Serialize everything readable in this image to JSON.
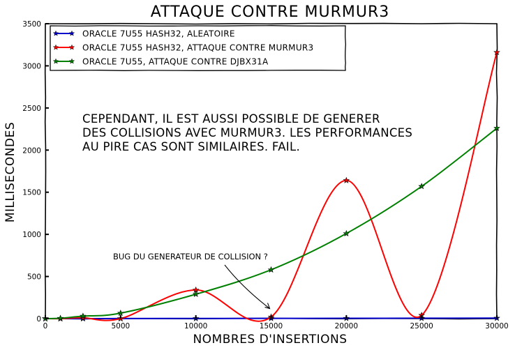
{
  "chart_data": {
    "type": "line",
    "title": "Attaque contre Murmur3",
    "xlabel": "Nombres d'insertions",
    "ylabel": "Millisecondes",
    "xlim": [
      0,
      30000
    ],
    "ylim": [
      0,
      3500
    ],
    "x_ticks": [
      0,
      5000,
      10000,
      15000,
      20000,
      25000,
      30000
    ],
    "y_ticks": [
      0,
      500,
      1000,
      1500,
      2000,
      2500,
      3000,
      3500
    ],
    "grid": false,
    "legend_position": "top-left",
    "series": [
      {
        "name": "Oracle 7u55 hash32, aleatoire",
        "color": "#0000cc",
        "x": [
          0,
          1000,
          2500,
          5000,
          10000,
          15000,
          20000,
          25000,
          30000
        ],
        "y": [
          0,
          0,
          0,
          1,
          2,
          3,
          4,
          5,
          6
        ]
      },
      {
        "name": "Oracle 7u55 hash32, attaque contre murmur3",
        "color": "#ff0000",
        "x": [
          0,
          1000,
          2500,
          5000,
          10000,
          15000,
          20000,
          25000,
          30000
        ],
        "y": [
          0,
          0,
          10,
          0,
          340,
          20,
          1640,
          40,
          3160
        ]
      },
      {
        "name": "Oracle 7u55, attaque contre DJBX31A",
        "color": "#008000",
        "x": [
          0,
          1000,
          2500,
          5000,
          10000,
          15000,
          20000,
          25000,
          30000
        ],
        "y": [
          0,
          5,
          30,
          65,
          290,
          580,
          1010,
          1570,
          2260
        ]
      }
    ],
    "annotations": [
      {
        "text": "Cependant, il est aussi possible de generer des collisions avec Murmur3. Les performances au pire cas sont similaires. FAIL.",
        "lines": [
          "Cependant, il est aussi possible de generer",
          "des collisions avec Murmur3. Les performances",
          "au pire cas sont similaires. FAIL."
        ]
      },
      {
        "text": "Bug du generateur de collision ?",
        "x": 15000,
        "y": 20
      }
    ]
  }
}
